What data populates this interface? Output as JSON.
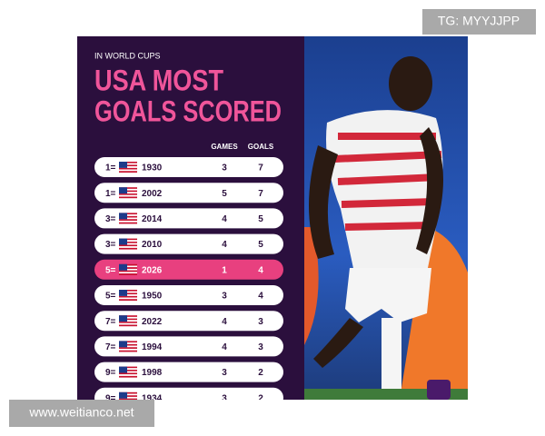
{
  "watermark": "TG: MYYJJPP",
  "footer_url": "www.weitianco.net",
  "header": {
    "kicker": "IN WORLD CUPS",
    "title_line1": "USA MOST",
    "title_line2": "GOALS SCORED"
  },
  "table": {
    "columns": [
      "GAMES",
      "GOALS"
    ],
    "rows": [
      [
        "1=",
        1930,
        3,
        7
      ],
      [
        "1=",
        2002,
        5,
        7
      ],
      [
        "3=",
        2014,
        4,
        5
      ],
      [
        "3=",
        2010,
        4,
        5
      ],
      [
        "5=",
        2026,
        1,
        4
      ],
      [
        "5=",
        1950,
        3,
        4
      ],
      [
        "7=",
        2022,
        4,
        3
      ],
      [
        "7=",
        1994,
        4,
        3
      ],
      [
        "9=",
        1998,
        3,
        2
      ],
      [
        "9=",
        1934,
        3,
        2
      ]
    ]
  }
}
